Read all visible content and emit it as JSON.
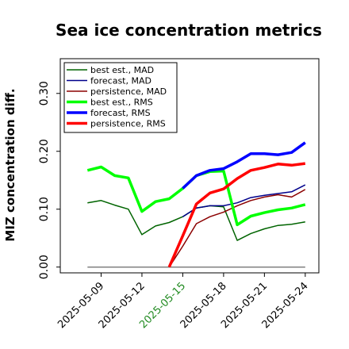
{
  "chart_data": {
    "type": "line",
    "title": "Sea ice concentration metrics",
    "ylabel": "MIZ concentration diff.",
    "xlabel": "",
    "ylim": [
      -0.01,
      0.36
    ],
    "xlim": [
      "2025-05-06",
      "2025-05-25"
    ],
    "yticks": [
      0.0,
      0.1,
      0.2,
      0.3
    ],
    "ytick_labels": [
      "0.00",
      "0.10",
      "0.20",
      "0.30"
    ],
    "xticks": [
      "2025-05-09",
      "2025-05-12",
      "2025-05-15",
      "2025-05-18",
      "2025-05-21",
      "2025-05-24"
    ],
    "xtick_labels": [
      "2025-05-09",
      "2025-05-12",
      "2025-05-15",
      "2025-05-18",
      "2025-05-21",
      "2025-05-24"
    ],
    "highlighted_xtick": "2025-05-15",
    "highlight_color": "#228b22",
    "legend_position": "upper-left",
    "grid": false,
    "reference_line": {
      "y": 0.0,
      "x_start": "2025-05-08",
      "x_end": "2025-05-24",
      "color": "#808080"
    },
    "series": [
      {
        "name": "best est., MAD",
        "color": "#006400",
        "width": 1.5,
        "points": [
          [
            "2025-05-08",
            0.111
          ],
          [
            "2025-05-09",
            0.115
          ],
          [
            "2025-05-10",
            0.107
          ],
          [
            "2025-05-11",
            0.1
          ],
          [
            "2025-05-12",
            0.056
          ],
          [
            "2025-05-13",
            0.071
          ],
          [
            "2025-05-14",
            0.077
          ],
          [
            "2025-05-15",
            0.087
          ],
          [
            "2025-05-16",
            0.102
          ],
          [
            "2025-05-17",
            0.106
          ],
          [
            "2025-05-18",
            0.104
          ],
          [
            "2025-05-19",
            0.046
          ],
          [
            "2025-05-20",
            0.058
          ],
          [
            "2025-05-21",
            0.066
          ],
          [
            "2025-05-22",
            0.072
          ],
          [
            "2025-05-23",
            0.074
          ],
          [
            "2025-05-24",
            0.078
          ]
        ]
      },
      {
        "name": "forecast,  MAD",
        "color": "#00008b",
        "width": 1.5,
        "points": [
          [
            "2025-05-15",
            0.087
          ],
          [
            "2025-05-16",
            0.102
          ],
          [
            "2025-05-17",
            0.106
          ],
          [
            "2025-05-18",
            0.106
          ],
          [
            "2025-05-19",
            0.111
          ],
          [
            "2025-05-20",
            0.12
          ],
          [
            "2025-05-21",
            0.124
          ],
          [
            "2025-05-22",
            0.127
          ],
          [
            "2025-05-23",
            0.13
          ],
          [
            "2025-05-24",
            0.142
          ]
        ]
      },
      {
        "name": "persistence, MAD",
        "color": "#8b0000",
        "width": 1.5,
        "points": [
          [
            "2025-05-14",
            0.0
          ],
          [
            "2025-05-15",
            0.036
          ],
          [
            "2025-05-16",
            0.075
          ],
          [
            "2025-05-17",
            0.087
          ],
          [
            "2025-05-18",
            0.095
          ],
          [
            "2025-05-19",
            0.106
          ],
          [
            "2025-05-20",
            0.115
          ],
          [
            "2025-05-21",
            0.121
          ],
          [
            "2025-05-22",
            0.125
          ],
          [
            "2025-05-23",
            0.121
          ],
          [
            "2025-05-24",
            0.134
          ]
        ]
      },
      {
        "name": "best est., RMS",
        "color": "#00ff00",
        "width": 3.5,
        "points": [
          [
            "2025-05-08",
            0.167
          ],
          [
            "2025-05-09",
            0.173
          ],
          [
            "2025-05-10",
            0.158
          ],
          [
            "2025-05-11",
            0.154
          ],
          [
            "2025-05-12",
            0.096
          ],
          [
            "2025-05-13",
            0.113
          ],
          [
            "2025-05-14",
            0.118
          ],
          [
            "2025-05-15",
            0.136
          ],
          [
            "2025-05-16",
            0.158
          ],
          [
            "2025-05-17",
            0.165
          ],
          [
            "2025-05-18",
            0.166
          ],
          [
            "2025-05-19",
            0.073
          ],
          [
            "2025-05-20",
            0.088
          ],
          [
            "2025-05-21",
            0.094
          ],
          [
            "2025-05-22",
            0.099
          ],
          [
            "2025-05-23",
            0.102
          ],
          [
            "2025-05-24",
            0.108
          ]
        ]
      },
      {
        "name": "forecast,  RMS",
        "color": "#0000ff",
        "width": 3.5,
        "points": [
          [
            "2025-05-15",
            0.136
          ],
          [
            "2025-05-16",
            0.158
          ],
          [
            "2025-05-17",
            0.167
          ],
          [
            "2025-05-18",
            0.17
          ],
          [
            "2025-05-19",
            0.182
          ],
          [
            "2025-05-20",
            0.196
          ],
          [
            "2025-05-21",
            0.196
          ],
          [
            "2025-05-22",
            0.194
          ],
          [
            "2025-05-23",
            0.198
          ],
          [
            "2025-05-24",
            0.215
          ]
        ]
      },
      {
        "name": "persistence, RMS",
        "color": "#ff0000",
        "width": 3.5,
        "points": [
          [
            "2025-05-14",
            0.0
          ],
          [
            "2025-05-15",
            0.054
          ],
          [
            "2025-05-16",
            0.109
          ],
          [
            "2025-05-17",
            0.128
          ],
          [
            "2025-05-18",
            0.135
          ],
          [
            "2025-05-19",
            0.153
          ],
          [
            "2025-05-20",
            0.167
          ],
          [
            "2025-05-21",
            0.172
          ],
          [
            "2025-05-22",
            0.178
          ],
          [
            "2025-05-23",
            0.176
          ],
          [
            "2025-05-24",
            0.179
          ]
        ]
      }
    ]
  }
}
